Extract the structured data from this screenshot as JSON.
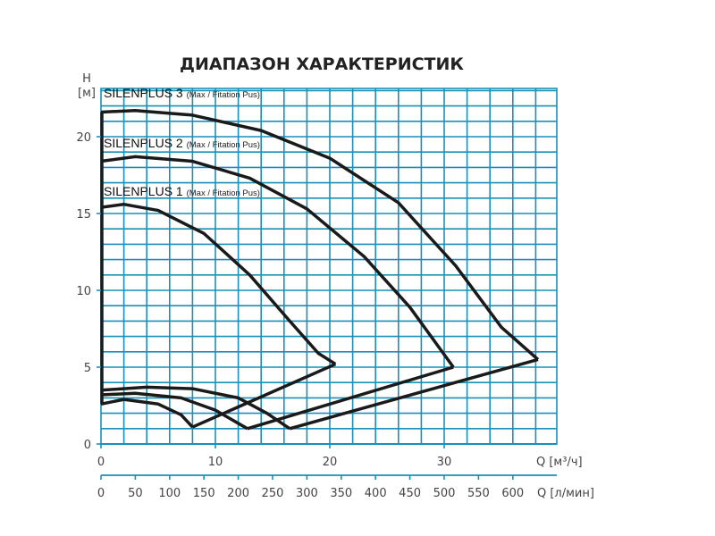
{
  "chart_data": {
    "type": "line",
    "title": "ДИАПАЗОН ХАРАКТЕРИСТИК",
    "ylabel": "H [м]",
    "xlabel": "Q [м³/ч]",
    "xlabel2": "Q [л/мин]",
    "xlim": [
      0,
      40
    ],
    "ylim": [
      0,
      23
    ],
    "x_ticks": [
      0,
      10,
      20,
      30
    ],
    "x2_ticks": [
      0,
      50,
      100,
      150,
      200,
      250,
      300,
      350,
      400,
      450,
      500,
      550,
      600
    ],
    "y_ticks": [
      0,
      5,
      10,
      15,
      20
    ],
    "grid": true,
    "grid_color": "#1a8fb8",
    "series": [
      {
        "name": "SILENPLUS 3",
        "note": "(Max / Fitation Pus)",
        "max_curve": [
          [
            0,
            21.6
          ],
          [
            3,
            21.7
          ],
          [
            8,
            21.4
          ],
          [
            14,
            20.4
          ],
          [
            20,
            18.6
          ],
          [
            26,
            15.7
          ],
          [
            31,
            11.6
          ],
          [
            35,
            7.6
          ],
          [
            38.2,
            5.5
          ]
        ],
        "min_curve": [
          [
            0,
            3.5
          ],
          [
            4,
            3.7
          ],
          [
            8,
            3.6
          ],
          [
            12,
            3.0
          ],
          [
            14.5,
            2.0
          ],
          [
            16.5,
            1.0
          ]
        ],
        "return_line": [
          [
            16.5,
            1.0
          ],
          [
            38.2,
            5.5
          ]
        ]
      },
      {
        "name": "SILENPLUS 2",
        "note": "(Max / Fitation Pus)",
        "max_curve": [
          [
            0,
            18.4
          ],
          [
            3,
            18.7
          ],
          [
            8,
            18.4
          ],
          [
            13,
            17.3
          ],
          [
            18,
            15.3
          ],
          [
            23,
            12.2
          ],
          [
            27,
            8.9
          ],
          [
            30.8,
            5.0
          ]
        ],
        "min_curve": [
          [
            0,
            3.2
          ],
          [
            3,
            3.3
          ],
          [
            7,
            3.0
          ],
          [
            10,
            2.2
          ],
          [
            12.8,
            1.0
          ]
        ],
        "return_line": [
          [
            12.8,
            1.0
          ],
          [
            30.8,
            5.0
          ]
        ]
      },
      {
        "name": "SILENPLUS 1",
        "note": "(Max / Fitation Pus)",
        "max_curve": [
          [
            0,
            15.4
          ],
          [
            2,
            15.6
          ],
          [
            5,
            15.2
          ],
          [
            9,
            13.7
          ],
          [
            13,
            11.0
          ],
          [
            16.5,
            8.0
          ],
          [
            19,
            5.9
          ],
          [
            20.5,
            5.2
          ]
        ],
        "min_curve": [
          [
            0,
            2.6
          ],
          [
            2,
            2.9
          ],
          [
            5,
            2.6
          ],
          [
            7,
            1.9
          ],
          [
            8,
            1.1
          ]
        ],
        "return_line": [
          [
            8,
            1.1
          ],
          [
            20.5,
            5.2
          ]
        ]
      }
    ]
  }
}
